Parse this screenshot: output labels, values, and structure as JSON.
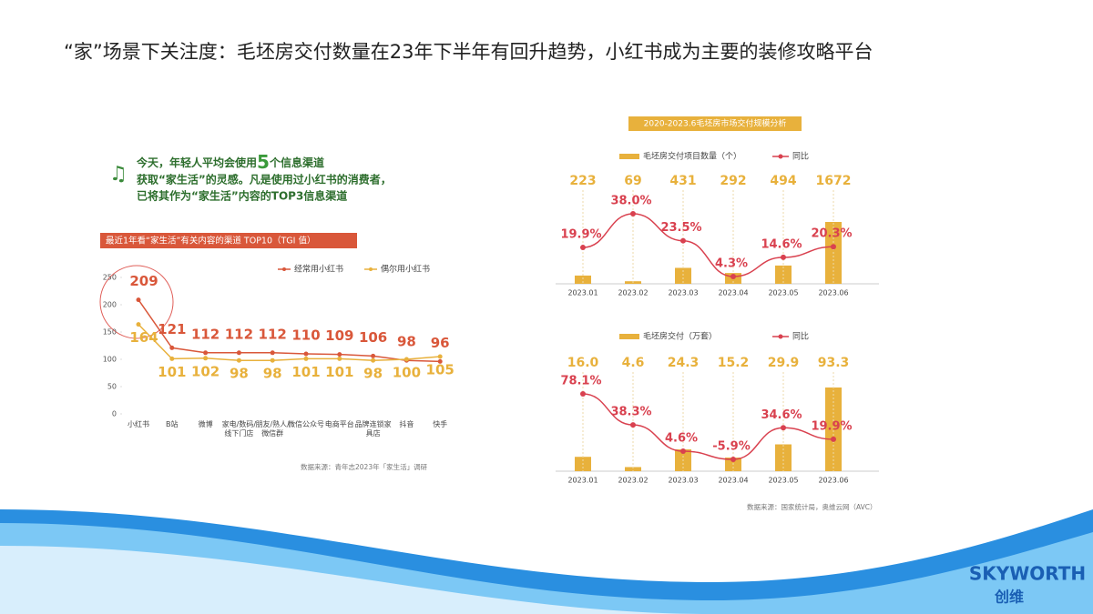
{
  "title": "“家”场景下关注度：毛坯房交付数量在23年下半年有回升趋势，小红书成为主要的装修攻略平台",
  "intro": {
    "line1": [
      "今天，年轻人平均会使用",
      "5",
      "个信息渠道"
    ],
    "line2": "获取“家生活”的灵感。凡是使用过小红书的消费者，",
    "line3": "已将其作为“家生活”内容的TOP3信息渠道"
  },
  "logo": {
    "brand": "SKYWORTH",
    "chinese": "创维"
  },
  "chart_data": [
    {
      "type": "line",
      "title": "最近1年看“家生活”有关内容的渠道 TOP10（TGI 值）",
      "categories": [
        "小红书",
        "B站",
        "微博",
        "家电/数码/线下门店",
        "朋友/熟人/微信群",
        "微信公众号",
        "电商平台",
        "品牌连锁家具店",
        "抖音",
        "快手"
      ],
      "series": [
        {
          "name": "经常用小红书",
          "color": "#d9573a",
          "values": [
            209,
            121,
            112,
            112,
            112,
            110,
            109,
            106,
            98,
            96
          ]
        },
        {
          "name": "偶尔用小红书",
          "color": "#e8b13c",
          "values": [
            164,
            101,
            102,
            98,
            98,
            101,
            101,
            98,
            100,
            105
          ]
        }
      ],
      "ylim": [
        0,
        250
      ],
      "yticks": [
        0,
        50,
        100,
        150,
        200,
        250
      ],
      "source": "数据来源：青年志2023年「家生活」调研"
    },
    {
      "type": "combo",
      "title": "2020-2023.6毛坯房市场交付规模分析",
      "categories": [
        "2023.01",
        "2023.02",
        "2023.03",
        "2023.04",
        "2023.05",
        "2023.06"
      ],
      "series": [
        {
          "name": "毛坯房交付项目数量（个）",
          "color": "#e8b13c",
          "values": [
            223,
            69,
            431,
            292,
            494,
            1672
          ]
        },
        {
          "name": "同比",
          "color": "#d9414f",
          "values": [
            19.9,
            38.0,
            23.5,
            4.3,
            14.6,
            20.3
          ],
          "value_labels": [
            "19.9%",
            "38.0%",
            "23.5%",
            "4.3%",
            "14.6%",
            "20.3%"
          ]
        }
      ]
    },
    {
      "type": "combo",
      "categories": [
        "2023.01",
        "2023.02",
        "2023.03",
        "2023.04",
        "2023.05",
        "2023.06"
      ],
      "series": [
        {
          "name": "毛坯房交付（万套）",
          "color": "#e8b13c",
          "values": [
            16.0,
            4.6,
            24.3,
            15.2,
            29.9,
            93.3
          ],
          "value_labels": [
            "16.0",
            "4.6",
            "24.3",
            "15.2",
            "29.9",
            "93.3"
          ]
        },
        {
          "name": "同比",
          "color": "#d9414f",
          "values": [
            78.1,
            38.3,
            4.6,
            -5.9,
            34.6,
            19.9
          ],
          "value_labels": [
            "78.1%",
            "38.3%",
            "4.6%",
            "-5.9%",
            "34.6%",
            "19.9%"
          ]
        }
      ],
      "source": "数据来源：国家统计局，奥维云网（AVC）"
    }
  ]
}
